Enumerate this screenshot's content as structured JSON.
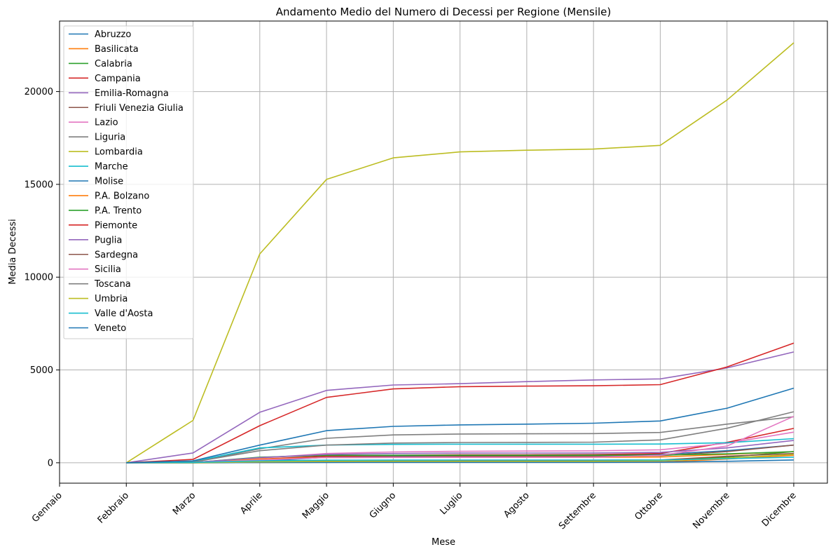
{
  "chart_data": {
    "type": "line",
    "title": "Andamento Medio del Numero di Decessi per Regione (Mensile)",
    "xlabel": "Mese",
    "ylabel": "Media Decessi",
    "categories": [
      "Gennaio",
      "Febbraio",
      "Marzo",
      "Aprile",
      "Maggio",
      "Giugno",
      "Luglio",
      "Agosto",
      "Settembre",
      "Ottobre",
      "Novembre",
      "Dicembre"
    ],
    "ylim": [
      -1100,
      23800
    ],
    "yticks": [
      0,
      5000,
      10000,
      15000,
      20000
    ],
    "grid": true,
    "legend_position": "top-left",
    "series": [
      {
        "name": "Abruzzo",
        "color": "#1f77b4",
        "values": [
          null,
          0,
          5,
          80,
          300,
          380,
          400,
          410,
          420,
          450,
          650,
          950
        ]
      },
      {
        "name": "Basilicata",
        "color": "#ff7f0e",
        "values": [
          null,
          0,
          1,
          10,
          25,
          28,
          28,
          28,
          29,
          40,
          200,
          400
        ]
      },
      {
        "name": "Calabria",
        "color": "#2ca02c",
        "values": [
          null,
          0,
          2,
          40,
          95,
          97,
          98,
          100,
          105,
          130,
          300,
          600
        ]
      },
      {
        "name": "Campania",
        "color": "#d62728",
        "values": [
          null,
          0,
          20,
          200,
          350,
          400,
          430,
          430,
          440,
          500,
          1100,
          1850
        ]
      },
      {
        "name": "Emilia-Romagna",
        "color": "#9467bd",
        "values": [
          null,
          0,
          530,
          2720,
          3900,
          4190,
          4260,
          4370,
          4460,
          4520,
          5110,
          5970
        ]
      },
      {
        "name": "Friuli Venezia Giulia",
        "color": "#8c564b",
        "values": [
          null,
          0,
          5,
          150,
          290,
          330,
          345,
          345,
          350,
          380,
          600,
          950
        ]
      },
      {
        "name": "Lazio",
        "color": "#e377c2",
        "values": [
          null,
          0,
          15,
          250,
          500,
          580,
          620,
          630,
          640,
          700,
          1050,
          1650
        ]
      },
      {
        "name": "Liguria",
        "color": "#7f7f7f",
        "values": [
          null,
          0,
          30,
          750,
          1320,
          1500,
          1550,
          1560,
          1570,
          1630,
          2080,
          2480
        ]
      },
      {
        "name": "Lombardia",
        "color": "#bcbd22",
        "values": [
          null,
          0,
          2280,
          11250,
          15270,
          16430,
          16750,
          16840,
          16900,
          17100,
          19540,
          22630
        ]
      },
      {
        "name": "Marche",
        "color": "#17becf",
        "values": [
          null,
          0,
          70,
          800,
          950,
          990,
          1000,
          1000,
          1000,
          1010,
          1080,
          1300
        ]
      },
      {
        "name": "Molise",
        "color": "#1f77b4",
        "values": [
          null,
          0,
          1,
          10,
          20,
          22,
          23,
          23,
          24,
          28,
          80,
          150
        ]
      },
      {
        "name": "P.A. Bolzano",
        "color": "#ff7f0e",
        "values": [
          null,
          0,
          15,
          200,
          280,
          290,
          292,
          293,
          295,
          310,
          450,
          600
        ]
      },
      {
        "name": "P.A. Trento",
        "color": "#2ca02c",
        "values": [
          null,
          0,
          10,
          300,
          400,
          405,
          405,
          405,
          406,
          410,
          480,
          600
        ]
      },
      {
        "name": "Piemonte",
        "color": "#d62728",
        "values": [
          null,
          0,
          180,
          2000,
          3520,
          3980,
          4100,
          4130,
          4150,
          4210,
          5160,
          6450
        ]
      },
      {
        "name": "Puglia",
        "color": "#9467bd",
        "values": [
          null,
          0,
          20,
          280,
          450,
          500,
          520,
          525,
          530,
          560,
          800,
          1200
        ]
      },
      {
        "name": "Sardegna",
        "color": "#8c564b",
        "values": [
          null,
          0,
          5,
          100,
          130,
          135,
          135,
          135,
          136,
          150,
          350,
          500
        ]
      },
      {
        "name": "Sicilia",
        "color": "#e377c2",
        "values": [
          null,
          0,
          10,
          150,
          280,
          285,
          290,
          290,
          295,
          400,
          900,
          2500
        ]
      },
      {
        "name": "Toscana",
        "color": "#7f7f7f",
        "values": [
          null,
          0,
          40,
          650,
          950,
          1060,
          1090,
          1100,
          1110,
          1230,
          1860,
          2750
        ]
      },
      {
        "name": "Umbria",
        "color": "#bcbd22",
        "values": [
          null,
          0,
          5,
          50,
          75,
          78,
          78,
          79,
          80,
          100,
          250,
          450
        ]
      },
      {
        "name": "Valle d'Aosta",
        "color": "#17becf",
        "values": [
          null,
          0,
          20,
          100,
          140,
          144,
          145,
          145,
          146,
          150,
          220,
          300
        ]
      },
      {
        "name": "Veneto",
        "color": "#1f77b4",
        "values": [
          null,
          0,
          100,
          950,
          1730,
          1960,
          2040,
          2080,
          2130,
          2250,
          2940,
          4020
        ]
      }
    ]
  }
}
